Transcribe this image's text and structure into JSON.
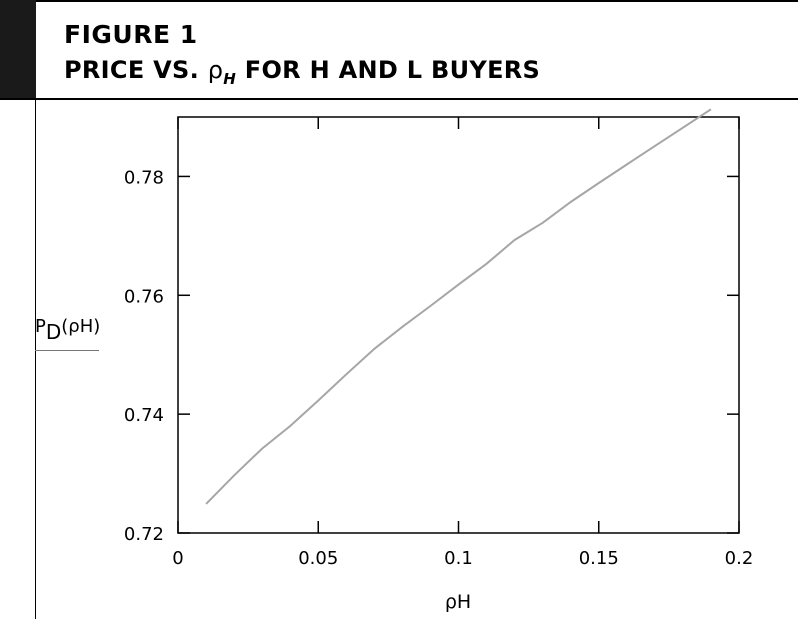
{
  "header": {
    "figure_label": "FIGURE 1",
    "title_prefix": "PRICE VS.",
    "title_rho": "ρ",
    "title_sub": "H",
    "title_suffix": "FOR H AND L BUYERS"
  },
  "chart_data": {
    "type": "line",
    "xlabel": "ρH",
    "ylabel_main": "P",
    "ylabel_sub": "D",
    "ylabel_arg": "(ρH)",
    "xlim": [
      0,
      0.2
    ],
    "ylim": [
      0.72,
      0.79
    ],
    "x_ticks": [
      0,
      0.05,
      0.1,
      0.15,
      0.2
    ],
    "x_tick_labels": [
      "0",
      "0.05",
      "0.1",
      "0.15",
      "0.2"
    ],
    "y_ticks": [
      0.72,
      0.74,
      0.76,
      0.78
    ],
    "y_tick_labels": [
      "0.72",
      "0.74",
      "0.76",
      "0.78"
    ],
    "grid": false,
    "line_color": "#a6a6a6",
    "series": [
      {
        "x": [
          0.01,
          0.02,
          0.03,
          0.04,
          0.05,
          0.06,
          0.07,
          0.08,
          0.09,
          0.1,
          0.11,
          0.12,
          0.13,
          0.14,
          0.15,
          0.16,
          0.17,
          0.18,
          0.19
        ],
        "values": [
          0.7249,
          0.7297,
          0.7342,
          0.738,
          0.7423,
          0.7467,
          0.751,
          0.7547,
          0.7582,
          0.7618,
          0.7653,
          0.7693,
          0.7722,
          0.7757,
          0.7789,
          0.782,
          0.7851,
          0.7882,
          0.7913
        ]
      }
    ]
  }
}
